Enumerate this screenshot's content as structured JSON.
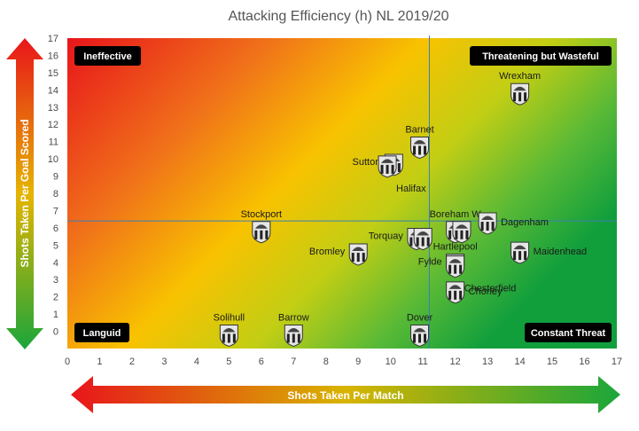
{
  "chart_data": {
    "type": "scatter",
    "title": "Attacking Efficiency (h) NL 2019/20",
    "xlabel": "Shots Taken Per Match",
    "ylabel": "Shots Taken Per Goal Scored",
    "xlim": [
      0,
      17
    ],
    "ylim": [
      -1,
      17
    ],
    "x_ticks": [
      0,
      1,
      2,
      3,
      4,
      5,
      6,
      7,
      8,
      9,
      10,
      11,
      12,
      13,
      14,
      15,
      16,
      17
    ],
    "y_ticks": [
      0,
      1,
      2,
      3,
      4,
      5,
      6,
      7,
      8,
      9,
      10,
      11,
      12,
      13,
      14,
      15,
      16,
      17
    ],
    "average_lines": {
      "x": 11.2,
      "y": 6.4
    },
    "grid": false,
    "background": "red-to-green diagonal gradient",
    "quadrant_labels": {
      "top_left": "Ineffective",
      "top_right": "Threatening but Wasteful",
      "bottom_left": "Languid",
      "bottom_right": "Constant Threat"
    },
    "points": [
      {
        "label": "Wrexham",
        "x": 14.0,
        "y": 13.8,
        "label_pos": "top"
      },
      {
        "label": "Barnet",
        "x": 10.9,
        "y": 10.7,
        "label_pos": "top"
      },
      {
        "label": "Sutton",
        "x": 10.1,
        "y": 9.7,
        "label_pos": "left"
      },
      {
        "label": "Halifax",
        "x": 9.9,
        "y": 9.6,
        "label_pos": "below-right"
      },
      {
        "label": "Stockport",
        "x": 6.0,
        "y": 5.8,
        "label_pos": "top"
      },
      {
        "label": "Boreham W",
        "x": 12.0,
        "y": 5.8,
        "label_pos": "top"
      },
      {
        "label": "Dagenham",
        "x": 13.0,
        "y": 6.3,
        "label_pos": "right"
      },
      {
        "label": "",
        "x": 12.2,
        "y": 5.8,
        "label_pos": "none"
      },
      {
        "label": "Torquay",
        "x": 10.8,
        "y": 5.4,
        "label_pos": "left"
      },
      {
        "label": "",
        "x": 11.0,
        "y": 5.4,
        "label_pos": "none"
      },
      {
        "label": "Hartlepool",
        "x": 12.0,
        "y": 3.9,
        "label_pos": "top"
      },
      {
        "label": "Maidenhead",
        "x": 14.0,
        "y": 4.6,
        "label_pos": "right"
      },
      {
        "label": "Bromley",
        "x": 9.0,
        "y": 4.5,
        "label_pos": "left"
      },
      {
        "label": "Fylde",
        "x": 12.0,
        "y": 3.9,
        "label_pos": "left"
      },
      {
        "label": "Chesterfield",
        "x": 12.0,
        "y": 3.8,
        "label_pos": "below-right"
      },
      {
        "label": "Chorley",
        "x": 12.0,
        "y": 2.3,
        "label_pos": "right"
      },
      {
        "label": "Solihull",
        "x": 5.0,
        "y": -0.2,
        "label_pos": "top"
      },
      {
        "label": "Barrow",
        "x": 7.0,
        "y": -0.2,
        "label_pos": "top"
      },
      {
        "label": "Dover",
        "x": 10.9,
        "y": -0.2,
        "label_pos": "top"
      }
    ]
  },
  "colors": {
    "red": "#e8151b",
    "orange": "#f07f14",
    "yellow": "#f8c900",
    "green": "#1aa63a",
    "axis_text": "#4a4a4a",
    "avg_line": "#3b7fb5",
    "label_box": "#000000",
    "crest_fill": "#e6e6e6",
    "crest_stroke": "#333333"
  }
}
